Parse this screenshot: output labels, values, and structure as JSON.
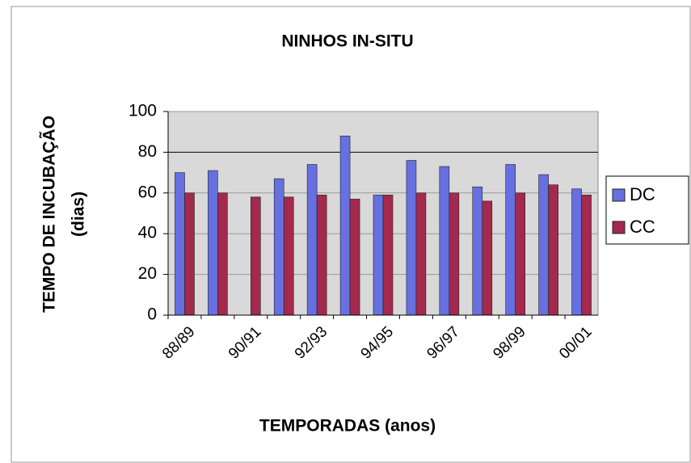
{
  "chart_data": {
    "type": "bar",
    "title": "NINHOS IN-SITU",
    "y_label": [
      "TEMPO DE INCUBAÇÃO",
      "(dias)"
    ],
    "x_label": "TEMPORADAS (anos)",
    "categories": [
      "88/89",
      null,
      "90/91",
      null,
      "92/93",
      null,
      "94/95",
      null,
      "96/97",
      null,
      "98/99",
      null,
      "00/01"
    ],
    "series": [
      {
        "name": "DC",
        "color": "#6670e0",
        "values": [
          70,
          71,
          null,
          67,
          74,
          88,
          59,
          76,
          73,
          63,
          74,
          69,
          62
        ]
      },
      {
        "name": "CC",
        "color": "#a3294d",
        "values": [
          60,
          60,
          58,
          58,
          59,
          57,
          59,
          60,
          60,
          56,
          60,
          64,
          59
        ]
      }
    ],
    "ylim": [
      0,
      100
    ],
    "yticks": [
      0,
      20,
      40,
      60,
      80,
      100
    ],
    "grid": true,
    "legend": "right"
  }
}
